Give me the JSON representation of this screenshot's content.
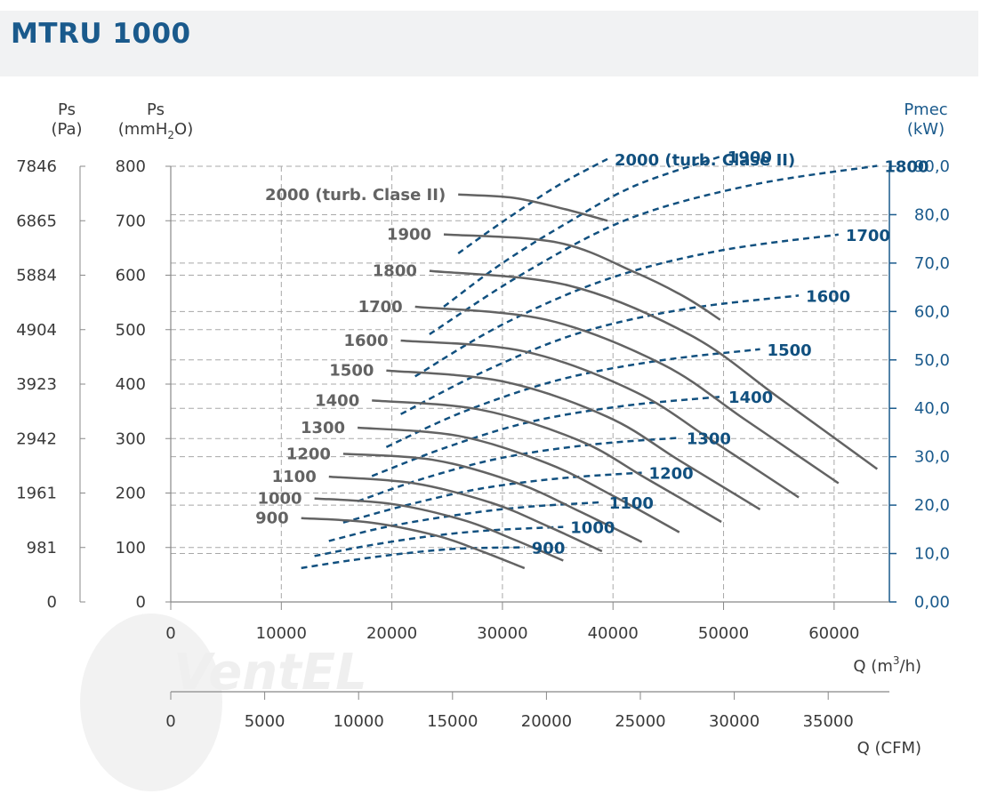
{
  "title": "MTRU 1000",
  "colors": {
    "pressure_curve": "#636363",
    "power_curve": "#11507f",
    "power_axis": "#1a5a8c",
    "grid": "#a8a8a8",
    "text": "#3a3a3a"
  },
  "axes": {
    "left_pa": {
      "title_line1": "Ps",
      "title_line2": "(Pa)",
      "ticks": [
        "0",
        "981",
        "1961",
        "2942",
        "3923",
        "4904",
        "5884",
        "6865",
        "7846"
      ]
    },
    "left_mmh2o": {
      "title_line1": "Ps",
      "title_line2_prefix": "(mmH",
      "title_line2_sub": "2",
      "title_line2_suffix": "O)",
      "ticks": [
        0,
        100,
        200,
        300,
        400,
        500,
        600,
        700,
        800
      ]
    },
    "right_kw": {
      "title_line1": "Pmec",
      "title_line2": "(kW)",
      "ticks": [
        "0,00",
        "10,0",
        "20,0",
        "30,0",
        "40,0",
        "50,0",
        "60,0",
        "70,0",
        "80,0",
        "90,0"
      ]
    },
    "x_m3h": {
      "label_prefix": "Q (m",
      "label_sup": "3",
      "label_suffix": "/h)",
      "ticks": [
        0,
        10000,
        20000,
        30000,
        40000,
        50000,
        60000
      ]
    },
    "x_cfm": {
      "label": "Q (CFM)",
      "ticks": [
        0,
        5000,
        10000,
        15000,
        20000,
        25000,
        30000,
        35000
      ]
    }
  },
  "chart_data": {
    "type": "line",
    "title": "MTRU 1000",
    "x_unit": "m3/h",
    "xlim": [
      0,
      65000
    ],
    "ylim_mmH2O": [
      0,
      800
    ],
    "ylim_kW": [
      0,
      90
    ],
    "grid": true,
    "pressure_series": [
      {
        "name": "900",
        "points": [
          [
            11800,
            154
          ],
          [
            18000,
            146
          ],
          [
            24000,
            122
          ],
          [
            28000,
            94
          ],
          [
            32000,
            62
          ]
        ]
      },
      {
        "name": "1000",
        "points": [
          [
            13000,
            190
          ],
          [
            20000,
            180
          ],
          [
            26500,
            150
          ],
          [
            31000,
            115
          ],
          [
            35500,
            76
          ]
        ]
      },
      {
        "name": "1100",
        "points": [
          [
            14300,
            230
          ],
          [
            22000,
            218
          ],
          [
            29000,
            182
          ],
          [
            34000,
            140
          ],
          [
            39000,
            93
          ]
        ]
      },
      {
        "name": "1200",
        "points": [
          [
            15600,
            272
          ],
          [
            24000,
            260
          ],
          [
            31500,
            217
          ],
          [
            37000,
            166
          ],
          [
            42600,
            110
          ]
        ]
      },
      {
        "name": "1300",
        "points": [
          [
            16900,
            320
          ],
          [
            26000,
            305
          ],
          [
            34000,
            255
          ],
          [
            40000,
            195
          ],
          [
            46000,
            128
          ]
        ]
      },
      {
        "name": "1400",
        "points": [
          [
            18200,
            370
          ],
          [
            28000,
            353
          ],
          [
            37000,
            296
          ],
          [
            43000,
            227
          ],
          [
            49800,
            147
          ]
        ]
      },
      {
        "name": "1500",
        "points": [
          [
            19500,
            425
          ],
          [
            30000,
            405
          ],
          [
            39500,
            340
          ],
          [
            46000,
            260
          ],
          [
            53300,
            170
          ]
        ]
      },
      {
        "name": "1600",
        "points": [
          [
            20800,
            480
          ],
          [
            32000,
            460
          ],
          [
            42000,
            386
          ],
          [
            49000,
            296
          ],
          [
            56800,
            192
          ]
        ]
      },
      {
        "name": "1700",
        "points": [
          [
            22100,
            542
          ],
          [
            34000,
            518
          ],
          [
            44500,
            436
          ],
          [
            52000,
            334
          ],
          [
            60400,
            218
          ]
        ]
      },
      {
        "name": "1800",
        "points": [
          [
            23400,
            608
          ],
          [
            36000,
            581
          ],
          [
            47000,
            490
          ],
          [
            55000,
            375
          ],
          [
            63900,
            244
          ]
        ]
      },
      {
        "name": "1900",
        "points": [
          [
            24700,
            675
          ],
          [
            35000,
            660
          ],
          [
            42000,
            605
          ],
          [
            46500,
            560
          ],
          [
            49700,
            518
          ]
        ]
      },
      {
        "name": "2000 (turb. Clase II)",
        "points": [
          [
            26000,
            748
          ],
          [
            31000,
            742
          ],
          [
            35500,
            722
          ],
          [
            39500,
            700
          ]
        ]
      }
    ],
    "power_series": [
      {
        "name": "900",
        "points": [
          [
            11800,
            7.0
          ],
          [
            16000,
            8.5
          ],
          [
            21000,
            10.0
          ],
          [
            26000,
            11.0
          ],
          [
            32000,
            11.3
          ]
        ]
      },
      {
        "name": "1000",
        "points": [
          [
            13000,
            9.5
          ],
          [
            18000,
            11.7
          ],
          [
            23500,
            13.6
          ],
          [
            29000,
            14.8
          ],
          [
            35500,
            15.5
          ]
        ]
      },
      {
        "name": "1100",
        "points": [
          [
            14300,
            12.6
          ],
          [
            19500,
            15.5
          ],
          [
            26000,
            18.0
          ],
          [
            32000,
            19.6
          ],
          [
            39000,
            20.6
          ]
        ]
      },
      {
        "name": "1200",
        "points": [
          [
            15600,
            16.4
          ],
          [
            21500,
            20.1
          ],
          [
            28000,
            23.4
          ],
          [
            35000,
            25.5
          ],
          [
            42600,
            26.7
          ]
        ]
      },
      {
        "name": "1300",
        "points": [
          [
            16900,
            20.8
          ],
          [
            23000,
            25.6
          ],
          [
            30000,
            29.8
          ],
          [
            38000,
            32.5
          ],
          [
            46000,
            33.9
          ]
        ]
      },
      {
        "name": "1400",
        "points": [
          [
            18200,
            26.0
          ],
          [
            25000,
            32.0
          ],
          [
            32500,
            37.2
          ],
          [
            41000,
            40.5
          ],
          [
            49800,
            42.4
          ]
        ]
      },
      {
        "name": "1500",
        "points": [
          [
            19500,
            32.0
          ],
          [
            26500,
            39.3
          ],
          [
            35000,
            45.8
          ],
          [
            44000,
            49.8
          ],
          [
            53300,
            52.2
          ]
        ]
      },
      {
        "name": "1600",
        "points": [
          [
            20800,
            38.8
          ],
          [
            28500,
            47.8
          ],
          [
            37000,
            55.6
          ],
          [
            46500,
            60.5
          ],
          [
            56800,
            63.3
          ]
        ]
      },
      {
        "name": "1700",
        "points": [
          [
            22100,
            46.6
          ],
          [
            30000,
            57.3
          ],
          [
            39500,
            66.7
          ],
          [
            49500,
            72.5
          ],
          [
            60400,
            75.9
          ]
        ]
      },
      {
        "name": "1800",
        "points": [
          [
            23400,
            55.3
          ],
          [
            32000,
            68.0
          ],
          [
            41500,
            79.2
          ],
          [
            52500,
            86.1
          ],
          [
            63900,
            90.1
          ]
        ]
      },
      {
        "name": "1900",
        "points": [
          [
            24700,
            61.0
          ],
          [
            30000,
            70.0
          ],
          [
            36000,
            78.5
          ],
          [
            42000,
            86.0
          ],
          [
            49700,
            92.0
          ]
        ]
      },
      {
        "name": "2000 (turb. Clase II)",
        "points": [
          [
            26000,
            72.0
          ],
          [
            30000,
            78.5
          ],
          [
            35000,
            86.0
          ],
          [
            39500,
            91.5
          ]
        ]
      }
    ]
  }
}
